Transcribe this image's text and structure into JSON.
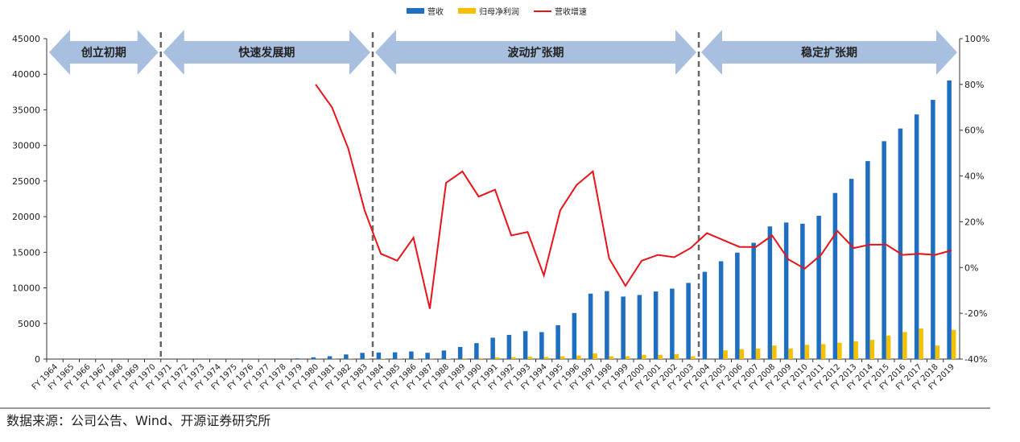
{
  "chart_data": {
    "type": "combo",
    "categories": [
      "FY 1964",
      "FY 1965",
      "FY 1966",
      "FY 1967",
      "FY 1968",
      "FY 1969",
      "FY 1970",
      "FY 1971",
      "FY 1972",
      "FY 1973",
      "FY 1974",
      "FY 1975",
      "FY 1976",
      "FY 1977",
      "FY 1978",
      "FY 1979",
      "FY 1980",
      "FY 1981",
      "FY 1982",
      "FY 1983",
      "FY 1984",
      "FY 1985",
      "FY 1986",
      "FY 1987",
      "FY 1988",
      "FY 1989",
      "FY 1990",
      "FY 1991",
      "FY 1992",
      "FY 1993",
      "FY 1994",
      "FY 1995",
      "FY 1996",
      "FY 1997",
      "FY 1998",
      "FY 1999",
      "FY 2000",
      "FY 2001",
      "FY 2002",
      "FY 2003",
      "FY 2004",
      "FY 2005",
      "FY 2006",
      "FY 2007",
      "FY 2008",
      "FY 2009",
      "FY 2010",
      "FY 2011",
      "FY 2012",
      "FY 2013",
      "FY 2014",
      "FY 2015",
      "FY 2016",
      "FY 2017",
      "FY 2018",
      "FY 2019"
    ],
    "series": [
      {
        "name": "营收",
        "color": "#1f6fc0",
        "kind": "bar",
        "values": [
          0,
          0,
          0,
          0,
          0,
          0,
          0,
          0,
          0,
          0,
          0,
          0,
          0,
          0,
          0,
          100,
          250,
          400,
          650,
          870,
          920,
          950,
          1070,
          880,
          1200,
          1700,
          2240,
          3000,
          3400,
          3930,
          3790,
          4760,
          6470,
          9190,
          9550,
          8780,
          9000,
          9490,
          9890,
          10700,
          12250,
          13740,
          14950,
          16330,
          18630,
          19180,
          19010,
          20120,
          23330,
          25310,
          27800,
          30600,
          32380,
          34350,
          36400,
          39120
        ]
      },
      {
        "name": "归母净利润",
        "color": "#f5c000",
        "kind": "bar",
        "values": [
          0,
          0,
          0,
          0,
          0,
          0,
          0,
          0,
          0,
          0,
          0,
          0,
          0,
          0,
          0,
          0,
          10,
          20,
          30,
          40,
          50,
          40,
          50,
          30,
          60,
          100,
          140,
          250,
          280,
          360,
          300,
          400,
          500,
          800,
          400,
          400,
          600,
          600,
          700,
          400,
          0,
          1220,
          1400,
          1480,
          1900,
          1500,
          2000,
          2100,
          2300,
          2500,
          2700,
          3300,
          3800,
          4300,
          1900,
          4100
        ]
      },
      {
        "name": "营收增速",
        "color": "#e8141a",
        "kind": "line",
        "axis": "y2",
        "values": [
          null,
          null,
          null,
          null,
          null,
          null,
          null,
          null,
          null,
          null,
          null,
          null,
          null,
          null,
          null,
          null,
          80,
          70,
          52,
          25,
          6,
          3,
          13,
          -18,
          37,
          42,
          31,
          34,
          14,
          15.5,
          -3.5,
          25,
          36,
          42,
          4,
          -8,
          3,
          5.5,
          4.5,
          8.5,
          15,
          12,
          9,
          9,
          14,
          3.5,
          -0.5,
          5.5,
          16,
          8.5,
          10,
          10,
          5.5,
          6,
          5.5,
          7.5
        ]
      }
    ],
    "ylim": [
      0,
      45000
    ],
    "yticks": [
      0,
      5000,
      10000,
      15000,
      20000,
      25000,
      30000,
      35000,
      40000,
      45000
    ],
    "y2lim": [
      -40,
      100
    ],
    "y2ticks": [
      {
        "value": -40,
        "label": "-40%"
      },
      {
        "value": -20,
        "label": "-20%"
      },
      {
        "value": 0,
        "label": "0%"
      },
      {
        "value": 20,
        "label": "20%"
      },
      {
        "value": 40,
        "label": "40%"
      },
      {
        "value": 60,
        "label": "60%"
      },
      {
        "value": 80,
        "label": "80%"
      },
      {
        "value": 100,
        "label": "100%"
      }
    ],
    "phases": [
      "创立初期",
      "快速发展期",
      "波动扩张期",
      "稳定扩张期"
    ],
    "source": "数据来源：公司公告、Wind、开源证券研究所"
  }
}
